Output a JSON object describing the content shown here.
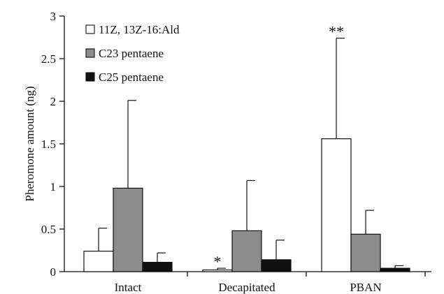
{
  "chart_data": {
    "type": "bar",
    "title": "",
    "xlabel": "",
    "ylabel": "Pheromone amount (ng)",
    "ylim": [
      0,
      3
    ],
    "yticks": [
      0,
      0.5,
      1,
      1.5,
      2,
      2.5,
      3
    ],
    "ytick_labels": [
      "0",
      "0.5",
      "1",
      "1.5",
      "2",
      "2.5",
      "3"
    ],
    "grid": false,
    "legend_position": "top-left",
    "categories": [
      "Intact",
      "Decapitated",
      "PBAN"
    ],
    "series": [
      {
        "name": "11Z, 13Z-16:Ald",
        "color": "#ffffff",
        "values": [
          0.24,
          0.02,
          1.56
        ],
        "errors": [
          0.27,
          0.02,
          1.18
        ],
        "annotations": [
          "",
          "*",
          "**"
        ]
      },
      {
        "name": "C23 pentaene",
        "color": "#8c8c8c",
        "values": [
          0.98,
          0.48,
          0.44
        ],
        "errors": [
          1.03,
          0.59,
          0.28
        ],
        "annotations": [
          "",
          "",
          ""
        ]
      },
      {
        "name": "C25 pentaene",
        "color": "#111111",
        "values": [
          0.11,
          0.14,
          0.04
        ],
        "errors": [
          0.11,
          0.23,
          0.03
        ],
        "annotations": [
          "",
          "",
          ""
        ]
      }
    ]
  }
}
